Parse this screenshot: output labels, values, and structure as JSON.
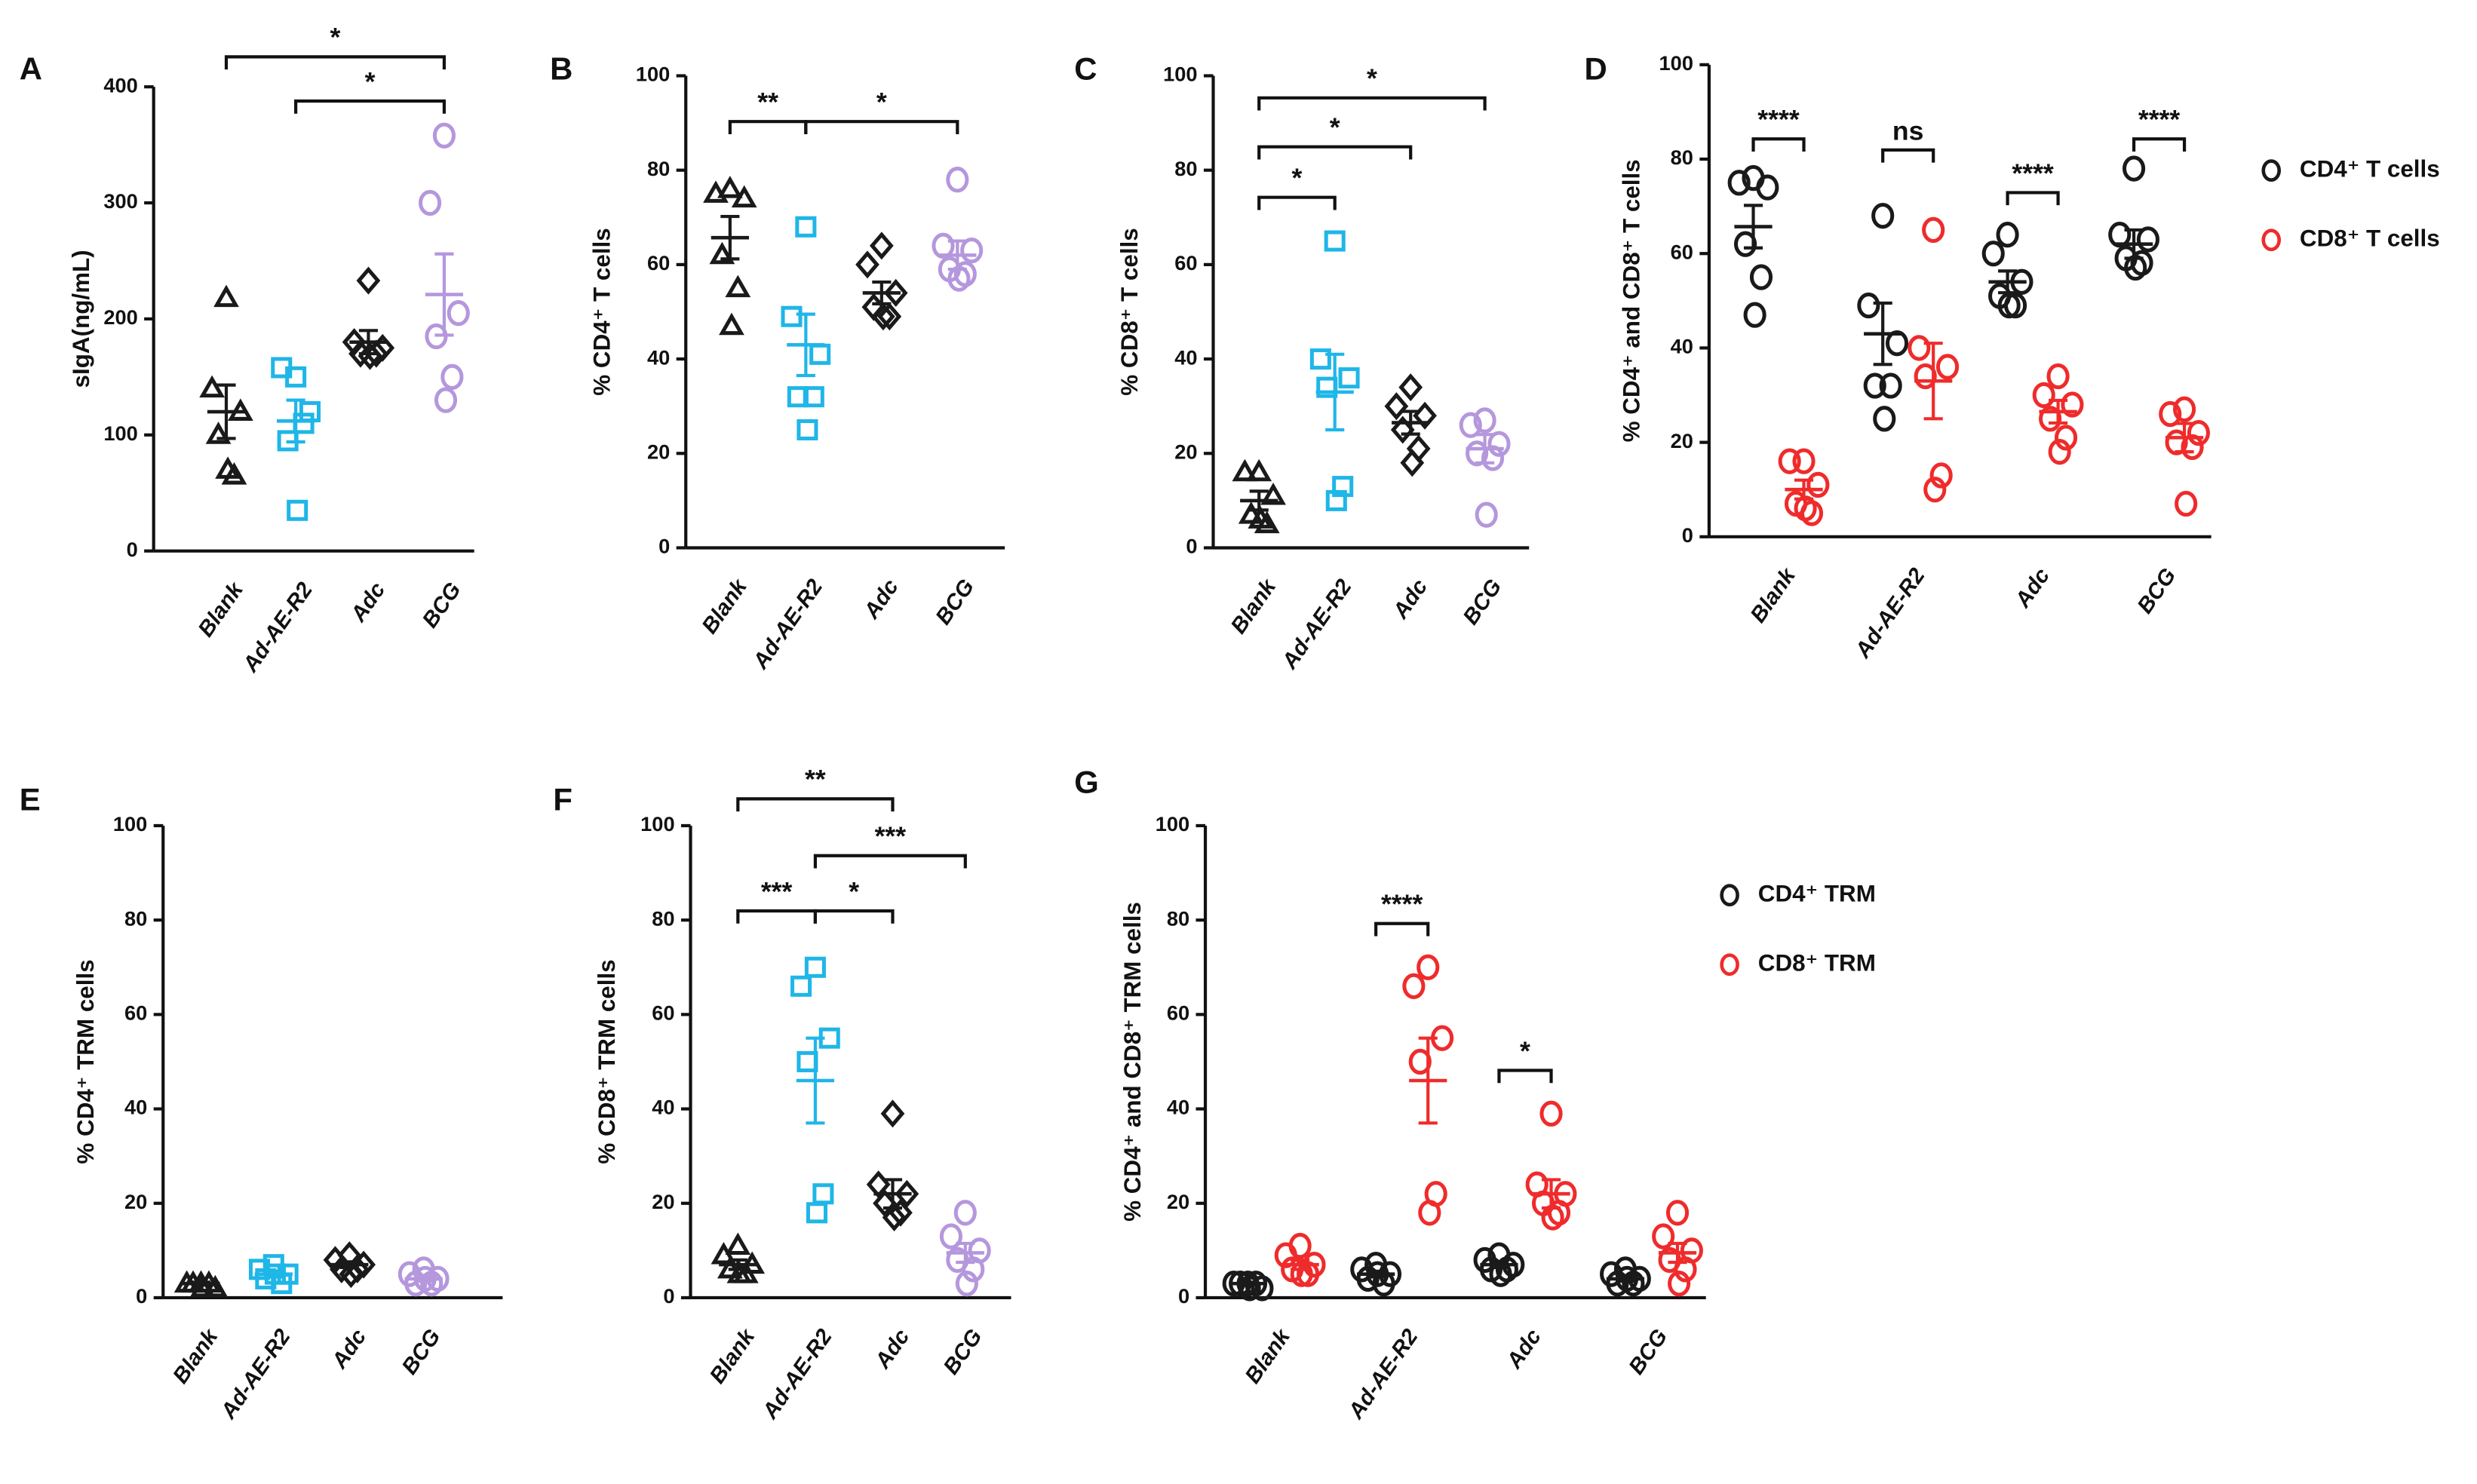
{
  "chart_data": [
    {
      "type": "dot",
      "panel": "A",
      "ylabel": "sIgA(ng/mL)",
      "categories": [
        "Blank",
        "Ad-AE-R2",
        "Adc",
        "BCG"
      ],
      "ylim": [
        0,
        400
      ],
      "yticks": [
        0,
        100,
        200,
        300,
        400
      ],
      "markers": [
        "triangle",
        "square",
        "diamond",
        "circle"
      ],
      "series": [
        {
          "colors": [
            "#1a1a1a",
            "#1fb6e8",
            "#1a1a1a",
            "#b597dd"
          ],
          "values": [
            [
              218,
              140,
              120,
              100,
              65,
              70
            ],
            [
              150,
              158,
              120,
              95,
              110,
              35
            ],
            [
              233,
              180,
              175,
              170,
              170,
              168
            ],
            [
              358,
              300,
              205,
              185,
              150,
              130
            ]
          ],
          "mean": [
            120,
            112,
            180,
            221
          ],
          "sem": [
            23,
            18,
            10,
            35
          ]
        }
      ],
      "annotations": [
        {
          "text": "*",
          "from": 0,
          "to": 3
        },
        {
          "text": "*",
          "from": 1,
          "to": 3
        }
      ]
    },
    {
      "type": "dot",
      "panel": "B",
      "ylabel": "% CD4⁺ T cells",
      "categories": [
        "Blank",
        "Ad-AE-R2",
        "Adc",
        "BCG"
      ],
      "ylim": [
        0,
        100
      ],
      "yticks": [
        0,
        20,
        40,
        60,
        80,
        100
      ],
      "markers": [
        "triangle",
        "square",
        "diamond",
        "circle"
      ],
      "series": [
        {
          "colors": [
            "#1a1a1a",
            "#1fb6e8",
            "#1a1a1a",
            "#b597dd"
          ],
          "values": [
            [
              76,
              75,
              74,
              62,
              55,
              47
            ],
            [
              68,
              49,
              41,
              32,
              32,
              25
            ],
            [
              64,
              60,
              54,
              51,
              49,
              49
            ],
            [
              78,
              64,
              63,
              59,
              58,
              57
            ]
          ],
          "mean": [
            65.7,
            43,
            54,
            62
          ],
          "sem": [
            4.5,
            6.5,
            2.3,
            3
          ]
        }
      ],
      "annotations": [
        {
          "text": "**",
          "from": 0,
          "to": 1
        },
        {
          "text": "*",
          "from": 1,
          "to": 3
        }
      ]
    },
    {
      "type": "dot",
      "panel": "C",
      "ylabel": "% CD8⁺ T cells",
      "categories": [
        "Blank",
        "Ad-AE-R2",
        "Adc",
        "BCG"
      ],
      "ylim": [
        0,
        100
      ],
      "yticks": [
        0,
        20,
        40,
        60,
        80,
        100
      ],
      "markers": [
        "triangle",
        "square",
        "diamond",
        "circle"
      ],
      "series": [
        {
          "colors": [
            "#1a1a1a",
            "#1fb6e8",
            "#1a1a1a",
            "#b597dd"
          ],
          "values": [
            [
              16,
              16,
              11,
              7,
              5,
              6
            ],
            [
              65,
              40,
              36,
              34,
              13,
              10
            ],
            [
              34,
              30,
              28,
              25,
              21,
              18
            ],
            [
              27,
              26,
              22,
              20,
              19,
              7
            ]
          ],
          "mean": [
            10,
            33,
            26.5,
            21
          ],
          "sem": [
            2,
            8,
            2.4,
            3
          ]
        }
      ],
      "annotations": [
        {
          "text": "*",
          "from": 0,
          "to": 1
        },
        {
          "text": "*",
          "from": 0,
          "to": 2
        },
        {
          "text": "*",
          "from": 0,
          "to": 3
        }
      ]
    },
    {
      "type": "dot",
      "panel": "D",
      "ylabel": "% CD4⁺ and CD8⁺ T cells",
      "categories": [
        "Blank",
        "Ad-AE-R2",
        "Adc",
        "BCG"
      ],
      "ylim": [
        0,
        100
      ],
      "yticks": [
        0,
        20,
        40,
        60,
        80,
        100
      ],
      "markers": [
        "circle",
        "circle",
        "circle",
        "circle"
      ],
      "series": [
        {
          "name": "CD4⁺ T cells",
          "color": "#1a1a1a",
          "values": [
            [
              76,
              75,
              74,
              62,
              55,
              47
            ],
            [
              68,
              49,
              41,
              32,
              32,
              25
            ],
            [
              64,
              60,
              54,
              51,
              49,
              49
            ],
            [
              78,
              64,
              63,
              59,
              58,
              57
            ]
          ],
          "mean": [
            65.7,
            43,
            54,
            62
          ],
          "sem": [
            4.5,
            6.5,
            2.3,
            3
          ]
        },
        {
          "name": "CD8⁺ T cells",
          "color": "#ef2b2b",
          "values": [
            [
              16,
              16,
              11,
              7,
              5,
              6
            ],
            [
              65,
              40,
              36,
              34,
              13,
              10
            ],
            [
              34,
              30,
              28,
              25,
              21,
              18
            ],
            [
              27,
              26,
              22,
              20,
              19,
              7
            ]
          ],
          "mean": [
            10,
            33,
            26.5,
            21
          ],
          "sem": [
            2,
            8,
            2.4,
            3
          ]
        }
      ],
      "annotations": [
        {
          "text": "****",
          "category": 0
        },
        {
          "text": "ns",
          "category": 1
        },
        {
          "text": "****",
          "category": 2
        },
        {
          "text": "****",
          "category": 3
        }
      ]
    },
    {
      "type": "dot",
      "panel": "E",
      "ylabel": "% CD4⁺ TRM cells",
      "categories": [
        "Blank",
        "Ad-AE-R2",
        "Adc",
        "BCG"
      ],
      "ylim": [
        0,
        100
      ],
      "yticks": [
        0,
        20,
        40,
        60,
        80,
        100
      ],
      "markers": [
        "triangle",
        "square",
        "diamond",
        "circle"
      ],
      "series": [
        {
          "colors": [
            "#1a1a1a",
            "#1fb6e8",
            "#1a1a1a",
            "#b597dd"
          ],
          "values": [
            [
              3,
              3,
              2,
              3,
              3,
              2
            ],
            [
              7,
              6,
              5,
              4,
              3,
              5
            ],
            [
              9,
              8,
              7,
              6,
              6,
              5
            ],
            [
              6,
              5,
              4,
              3,
              3,
              4
            ]
          ],
          "mean": [
            3,
            5,
            7,
            4
          ],
          "sem": [
            0.3,
            0.6,
            0.6,
            0.5
          ]
        }
      ],
      "annotations": []
    },
    {
      "type": "dot",
      "panel": "F",
      "ylabel": "% CD8⁺ TRM cells",
      "categories": [
        "Blank",
        "Ad-AE-R2",
        "Adc",
        "BCG"
      ],
      "ylim": [
        0,
        100
      ],
      "yticks": [
        0,
        20,
        40,
        60,
        80,
        100
      ],
      "markers": [
        "triangle",
        "square",
        "diamond",
        "circle"
      ],
      "series": [
        {
          "colors": [
            "#1a1a1a",
            "#1fb6e8",
            "#1a1a1a",
            "#b597dd"
          ],
          "values": [
            [
              11,
              9,
              7,
              6,
              5,
              5
            ],
            [
              70,
              66,
              55,
              50,
              22,
              18
            ],
            [
              39,
              24,
              22,
              20,
              18,
              17
            ],
            [
              18,
              13,
              10,
              8,
              6,
              3
            ]
          ],
          "mean": [
            7,
            46,
            22,
            9.5
          ],
          "sem": [
            1,
            9,
            3,
            2
          ]
        }
      ],
      "annotations": [
        {
          "text": "**",
          "from": 0,
          "to": 2
        },
        {
          "text": "***",
          "from": 0,
          "to": 1
        },
        {
          "text": "*",
          "from": 1,
          "to": 2
        },
        {
          "text": "***",
          "from": 1,
          "to": 3
        }
      ]
    },
    {
      "type": "dot",
      "panel": "G",
      "ylabel": "% CD4⁺ and CD8⁺ TRM cells",
      "categories": [
        "Blank",
        "Ad-AE-R2",
        "Adc",
        "BCG"
      ],
      "ylim": [
        0,
        100
      ],
      "yticks": [
        0,
        20,
        40,
        60,
        80,
        100
      ],
      "markers": [
        "circle",
        "circle",
        "circle",
        "circle"
      ],
      "series": [
        {
          "name": "CD4⁺ TRM",
          "color": "#1a1a1a",
          "values": [
            [
              3,
              3,
              2,
              3,
              3,
              2
            ],
            [
              7,
              6,
              5,
              4,
              3,
              5
            ],
            [
              9,
              8,
              7,
              6,
              6,
              5
            ],
            [
              6,
              5,
              4,
              3,
              3,
              4
            ]
          ],
          "mean": [
            3,
            5,
            7,
            4
          ],
          "sem": [
            0.3,
            0.6,
            0.6,
            0.5
          ]
        },
        {
          "name": "CD8⁺ TRM",
          "color": "#ef2b2b",
          "values": [
            [
              11,
              9,
              7,
              6,
              5,
              5
            ],
            [
              70,
              66,
              55,
              50,
              22,
              18
            ],
            [
              39,
              24,
              22,
              20,
              18,
              17
            ],
            [
              18,
              13,
              10,
              8,
              6,
              3
            ]
          ],
          "mean": [
            7,
            46,
            22,
            9.5
          ],
          "sem": [
            1,
            9,
            3,
            2
          ]
        }
      ],
      "annotations": [
        {
          "text": "****",
          "category": 1
        },
        {
          "text": "*",
          "category": 2
        }
      ]
    }
  ]
}
